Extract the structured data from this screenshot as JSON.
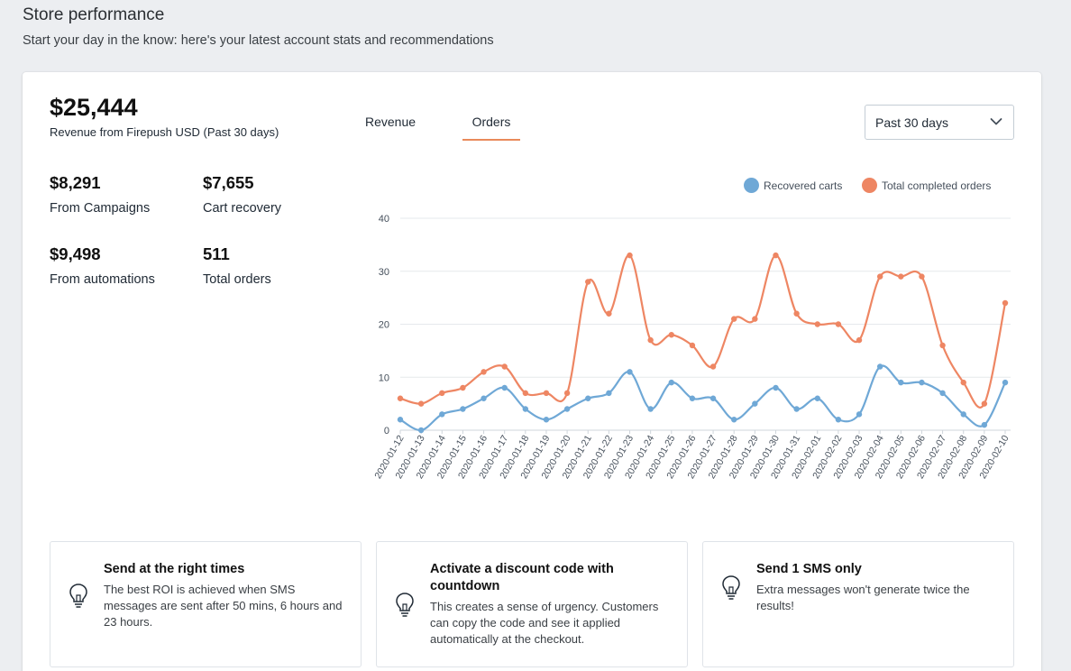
{
  "page": {
    "title": "Store performance",
    "subtitle": "Start your day in the know: here's your latest account stats and recommendations"
  },
  "summary": {
    "total_revenue": "$25,444",
    "total_revenue_label": "Revenue from Firepush USD (Past 30 days)",
    "stats": [
      {
        "value": "$8,291",
        "label": "From Campaigns"
      },
      {
        "value": "$7,655",
        "label": "Cart recovery"
      },
      {
        "value": "$9,498",
        "label": "From automations"
      },
      {
        "value": "511",
        "label": "Total orders"
      }
    ]
  },
  "tabs": [
    {
      "label": "Revenue",
      "active": false
    },
    {
      "label": "Orders",
      "active": true
    }
  ],
  "period_select": {
    "value": "Past 30 days",
    "icon": "chevron-down-icon"
  },
  "colors": {
    "recovered": "#6fa8d6",
    "completed": "#ee8663",
    "tab_underline": "#e98a5a"
  },
  "chart_data": {
    "type": "line",
    "x": [
      "2020-01-12",
      "2020-01-13",
      "2020-01-14",
      "2020-01-15",
      "2020-01-16",
      "2020-01-17",
      "2020-01-18",
      "2020-01-19",
      "2020-01-20",
      "2020-01-21",
      "2020-01-22",
      "2020-01-23",
      "2020-01-24",
      "2020-01-25",
      "2020-01-26",
      "2020-01-27",
      "2020-01-28",
      "2020-01-29",
      "2020-01-30",
      "2020-01-31",
      "2020-02-01",
      "2020-02-02",
      "2020-02-03",
      "2020-02-04",
      "2020-02-05",
      "2020-02-06",
      "2020-02-07",
      "2020-02-08",
      "2020-02-09",
      "2020-02-10"
    ],
    "series": [
      {
        "name": "Recovered carts",
        "color": "#6fa8d6",
        "values": [
          2,
          0,
          3,
          4,
          6,
          8,
          4,
          2,
          4,
          6,
          7,
          11,
          4,
          9,
          6,
          6,
          2,
          5,
          8,
          4,
          6,
          2,
          3,
          12,
          9,
          9,
          7,
          3,
          1,
          9
        ]
      },
      {
        "name": "Total completed orders",
        "color": "#ee8663",
        "values": [
          6,
          5,
          7,
          8,
          11,
          12,
          7,
          7,
          7,
          28,
          22,
          33,
          17,
          18,
          16,
          12,
          21,
          21,
          33,
          22,
          20,
          20,
          17,
          29,
          29,
          29,
          16,
          9,
          5,
          24
        ]
      }
    ],
    "ylim": [
      0,
      40
    ],
    "yticks": [
      0,
      10,
      20,
      30,
      40
    ],
    "grid": true,
    "legend_position": "top-right"
  },
  "tips": [
    {
      "title": "Send at the right times",
      "text": "The best ROI is achieved when SMS messages are sent after 50 mins, 6 hours and 23 hours.",
      "icon": "lightbulb-icon"
    },
    {
      "title": "Activate a discount code with countdown",
      "text": "This creates a sense of urgency. Customers can copy the code and see it applied automatically at the checkout.",
      "icon": "lightbulb-icon"
    },
    {
      "title": "Send 1 SMS only",
      "text": "Extra messages won't generate twice the results!",
      "icon": "lightbulb-icon"
    }
  ]
}
